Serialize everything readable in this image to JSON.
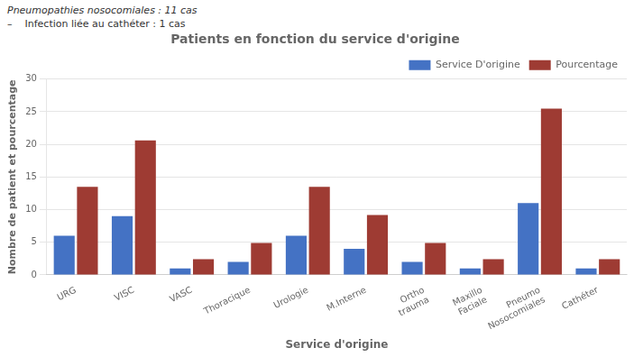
{
  "chart_data": {
    "type": "bar",
    "title": "Patients en fonction du service d'origine",
    "annotations": [
      "Pneumopathies nosocomiales : 11 cas",
      "–    Infection liée au cathéter : 1 cas"
    ],
    "xlabel": "Service d'origine",
    "ylabel": "Nombre de patient et pourcentage",
    "categories": [
      "URG",
      "VISC",
      "VASC",
      "Thoracique",
      "Urologie",
      "M.Interne",
      "Ortho\ntrauma",
      "Maxillo\nFaciale",
      "Pneumo\nNosocomiales",
      "Cathéter"
    ],
    "series": [
      {
        "name": "Service D'origine",
        "color": "#4472C4",
        "values": [
          6,
          9,
          1,
          2,
          6,
          4,
          2,
          1,
          11,
          1
        ]
      },
      {
        "name": "Pourcentage",
        "color": "#9E3B33",
        "values": [
          13.5,
          20.6,
          2.4,
          4.9,
          13.5,
          9.2,
          4.9,
          2.4,
          25.5,
          2.4
        ]
      }
    ],
    "ylim": [
      0,
      30
    ],
    "yticks": [
      0,
      5,
      10,
      15,
      20,
      25,
      30
    ],
    "grid": true,
    "legend": "upper right"
  }
}
